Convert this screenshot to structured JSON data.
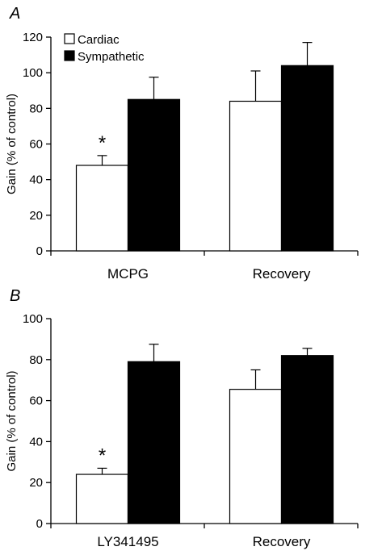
{
  "chart_data": [
    {
      "type": "bar",
      "panel_label": "A",
      "categories": [
        "MCPG",
        "Recovery"
      ],
      "series": [
        {
          "name": "Cardiac",
          "values": [
            48,
            84
          ],
          "errors": [
            5.5,
            17
          ],
          "color": "#ffffff"
        },
        {
          "name": "Sympathetic",
          "values": [
            85,
            104
          ],
          "errors": [
            12.5,
            13
          ],
          "color": "#000000"
        }
      ],
      "ylabel": "Gain (% of control)",
      "ylim": [
        0,
        120
      ],
      "yticks": [
        0,
        20,
        40,
        60,
        80,
        100,
        120
      ],
      "grid": false,
      "legend": "top-left",
      "annotations": [
        {
          "text": "*",
          "category": "MCPG",
          "series": "Cardiac"
        }
      ]
    },
    {
      "type": "bar",
      "panel_label": "B",
      "categories": [
        "LY341495",
        "Recovery"
      ],
      "series": [
        {
          "values": [
            24,
            65.5
          ],
          "errors": [
            3,
            9.5
          ],
          "color": "#ffffff"
        },
        {
          "values": [
            79,
            82
          ],
          "errors": [
            8.5,
            3.5
          ],
          "color": "#000000"
        }
      ],
      "ylabel": "Gain (% of control)",
      "ylim": [
        0,
        100
      ],
      "yticks": [
        0,
        20,
        40,
        60,
        80,
        100
      ],
      "grid": false,
      "annotations": [
        {
          "text": "*",
          "category": "LY341495",
          "series": 0
        }
      ]
    }
  ]
}
